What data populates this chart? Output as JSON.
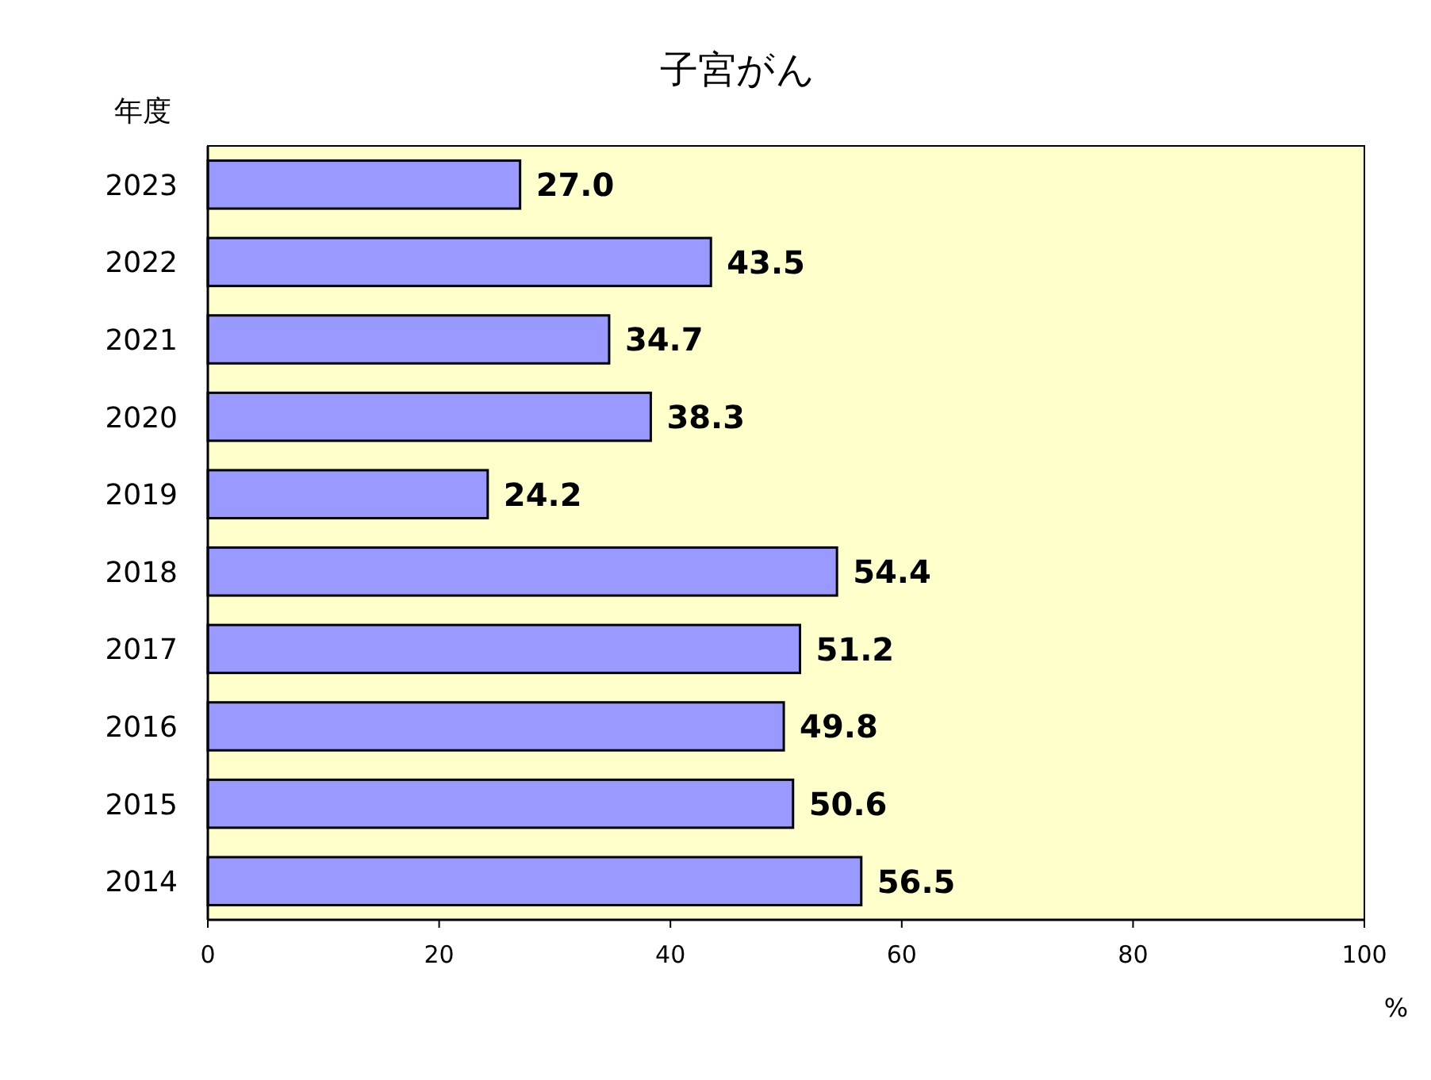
{
  "chart_data": {
    "type": "bar",
    "orientation": "horizontal",
    "title": "子宮がん",
    "ylabel": "年度",
    "xlabel": "%",
    "categories": [
      "2023",
      "2022",
      "2021",
      "2020",
      "2019",
      "2018",
      "2017",
      "2016",
      "2015",
      "2014"
    ],
    "values": [
      27.0,
      43.5,
      34.7,
      38.3,
      24.2,
      54.4,
      51.2,
      49.8,
      50.6,
      56.5
    ],
    "value_labels": [
      "27.0",
      "43.5",
      "34.7",
      "38.3",
      "24.2",
      "54.4",
      "51.2",
      "49.8",
      "50.6",
      "56.5"
    ],
    "color": "#9999ff",
    "xlim": [
      0,
      100
    ],
    "xticks": [
      0,
      20,
      40,
      60,
      80,
      100
    ],
    "grid": false
  }
}
